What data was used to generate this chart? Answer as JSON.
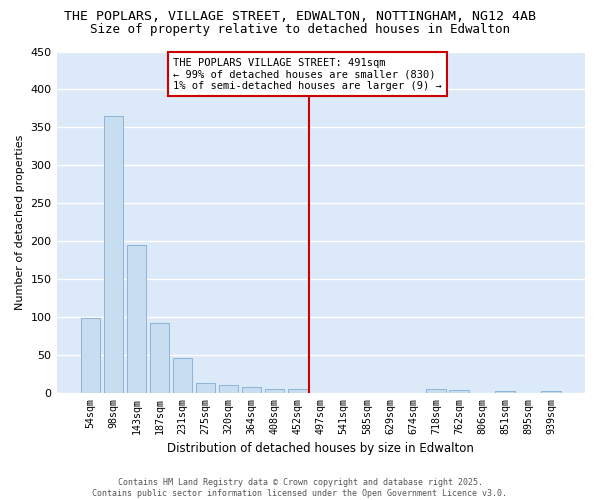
{
  "title": "THE POPLARS, VILLAGE STREET, EDWALTON, NOTTINGHAM, NG12 4AB",
  "subtitle": "Size of property relative to detached houses in Edwalton",
  "xlabel": "Distribution of detached houses by size in Edwalton",
  "ylabel": "Number of detached properties",
  "categories": [
    "54sqm",
    "98sqm",
    "143sqm",
    "187sqm",
    "231sqm",
    "275sqm",
    "320sqm",
    "364sqm",
    "408sqm",
    "452sqm",
    "497sqm",
    "541sqm",
    "585sqm",
    "629sqm",
    "674sqm",
    "718sqm",
    "762sqm",
    "806sqm",
    "851sqm",
    "895sqm",
    "939sqm"
  ],
  "values": [
    98,
    365,
    195,
    92,
    46,
    13,
    10,
    8,
    5,
    5,
    0,
    0,
    0,
    0,
    0,
    5,
    4,
    0,
    2,
    0,
    2
  ],
  "bar_color": "#c9ddf0",
  "bar_edge_color": "#8ab4d8",
  "vline_x_index": 10,
  "vline_color": "#cc0000",
  "annotation_text": "THE POPLARS VILLAGE STREET: 491sqm\n← 99% of detached houses are smaller (830)\n1% of semi-detached houses are larger (9) →",
  "annotation_box_color": "#cc0000",
  "ylim": [
    0,
    450
  ],
  "yticks": [
    0,
    50,
    100,
    150,
    200,
    250,
    300,
    350,
    400,
    450
  ],
  "plot_bg_color": "#dce9f8",
  "fig_bg_color": "#ffffff",
  "grid_color": "#ffffff",
  "footer_text": "Contains HM Land Registry data © Crown copyright and database right 2025.\nContains public sector information licensed under the Open Government Licence v3.0.",
  "title_fontsize": 9.5,
  "subtitle_fontsize": 9
}
